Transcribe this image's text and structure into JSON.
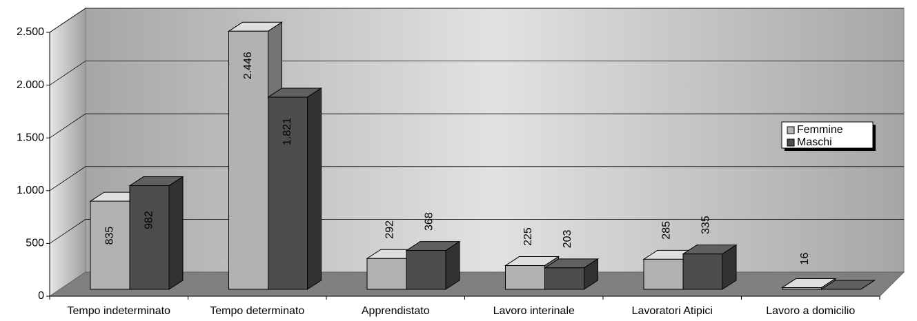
{
  "chart_data": {
    "type": "bar3d",
    "categories": [
      "Tempo indeterminato",
      "Tempo determinato",
      "Apprendistato",
      "Lavoro interinale",
      "Lavoratori Atipici",
      "Lavoro a domicilio"
    ],
    "series": [
      {
        "name": "Femmine",
        "color": "#b2b2b2",
        "values": [
          835,
          2446,
          292,
          225,
          285,
          16
        ],
        "value_labels": [
          "835",
          "2.446",
          "292",
          "225",
          "285",
          "16"
        ]
      },
      {
        "name": "Maschi",
        "color": "#4d4d4d",
        "values": [
          982,
          1821,
          368,
          203,
          335,
          0
        ],
        "value_labels": [
          "982",
          "1.821",
          "368",
          "203",
          "335",
          null
        ]
      }
    ],
    "ylim": [
      0,
      2500
    ],
    "yticks": [
      0,
      500,
      {
        "value": 1000,
        "label": "1.000"
      },
      {
        "value": 1500,
        "label": "1.500"
      },
      {
        "value": 2000,
        "label": "2.000"
      },
      {
        "value": 2500,
        "label": "2.500"
      }
    ],
    "grid": true,
    "legend": "right"
  }
}
